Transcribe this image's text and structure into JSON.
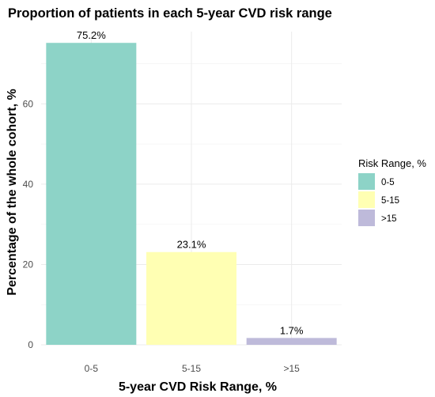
{
  "chart_data": {
    "type": "bar",
    "title": "Proportion of patients in each 5-year CVD risk range",
    "xlabel": "5-year CVD Risk Range, %",
    "ylabel": "Percentage of the whole cohort, %",
    "categories": [
      "0-5",
      "5-15",
      ">15"
    ],
    "values": [
      75.2,
      23.1,
      1.7
    ],
    "data_labels": [
      "75.2%",
      "23.1%",
      "1.7%"
    ],
    "colors": [
      "#8dd3c7",
      "#ffffb3",
      "#bebada"
    ],
    "ylim": [
      0,
      78
    ],
    "yticks": [
      0,
      20,
      40,
      60
    ],
    "ytick_labels": [
      "0",
      "20",
      "40",
      "60"
    ],
    "grid": true,
    "legend": {
      "title": "Risk Range, %",
      "placement": "right",
      "entries": [
        "0-5",
        "5-15",
        ">15"
      ]
    }
  }
}
